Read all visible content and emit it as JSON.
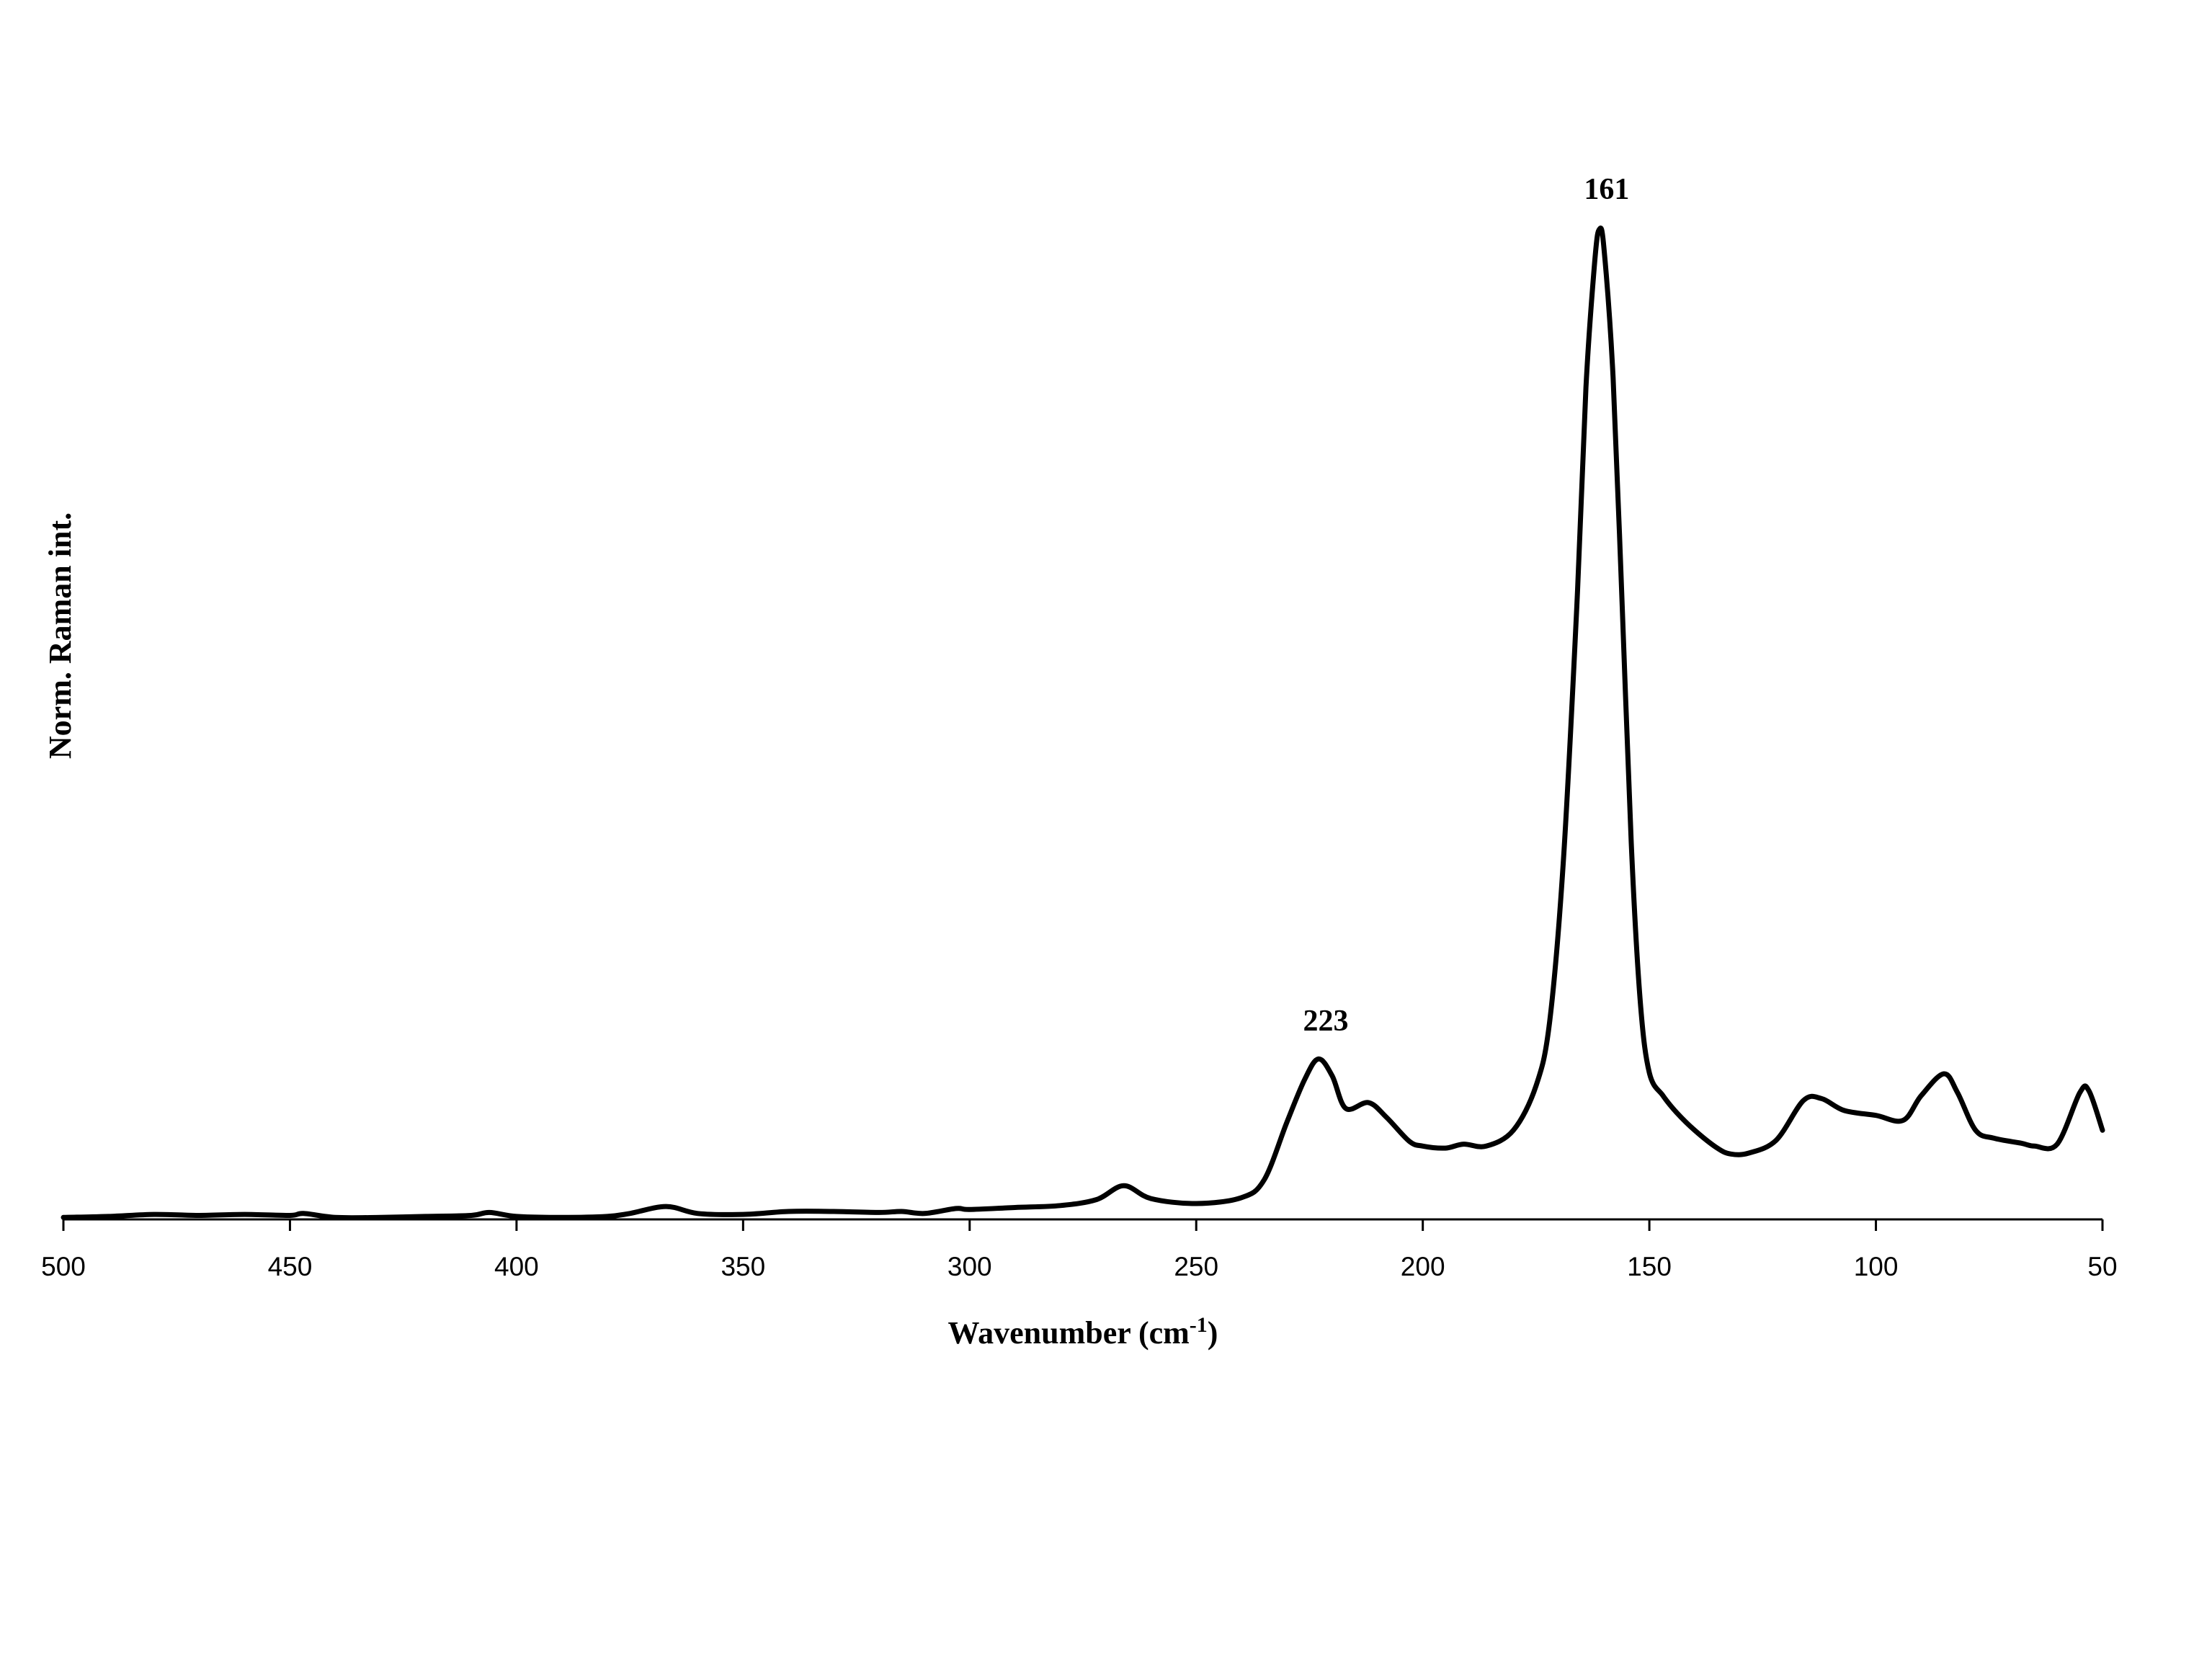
{
  "chart_data": {
    "type": "line",
    "xlabel": "Wavenumber (cm",
    "xlabel_superscript": "-1",
    "xlabel_suffix": ")",
    "ylabel": "Norm. Raman int.",
    "xlim": [
      500,
      50
    ],
    "x_reversed": true,
    "ylim": [
      0,
      1
    ],
    "x_ticks": [
      "500",
      "450",
      "400",
      "350",
      "300",
      "250",
      "200",
      "150",
      "100",
      "50"
    ],
    "y_ticks": [],
    "grid": false,
    "legend": "none",
    "line_color": "#000000",
    "annotations": [
      {
        "text": "161",
        "x": 161,
        "y": 1.0
      },
      {
        "text": "223",
        "x": 223,
        "y": 0.16
      }
    ],
    "series": [
      {
        "x": [
          500,
          490,
          480,
          470,
          460,
          450,
          447,
          440,
          430,
          420,
          410,
          406,
          400,
          390,
          380,
          375,
          367,
          360,
          350,
          340,
          330,
          320,
          315,
          310,
          303,
          300,
          290,
          280,
          272,
          266,
          260,
          250,
          240,
          235,
          230,
          226,
          223,
          220,
          217,
          212,
          208,
          203,
          200,
          195,
          191,
          186,
          180,
          175,
          172,
          169,
          166,
          164,
          162,
          161,
          160,
          158,
          156,
          154,
          152,
          150,
          147,
          144,
          140,
          135,
          132,
          128,
          122,
          116,
          112,
          107,
          100,
          94,
          90,
          85,
          82,
          78,
          74,
          68,
          65,
          60,
          55,
          53,
          50
        ],
        "y": [
          0.002,
          0.003,
          0.005,
          0.004,
          0.005,
          0.004,
          0.006,
          0.002,
          0.002,
          0.003,
          0.004,
          0.007,
          0.003,
          0.002,
          0.003,
          0.006,
          0.013,
          0.006,
          0.005,
          0.008,
          0.008,
          0.007,
          0.008,
          0.006,
          0.011,
          0.01,
          0.012,
          0.014,
          0.02,
          0.034,
          0.021,
          0.016,
          0.022,
          0.04,
          0.098,
          0.142,
          0.162,
          0.145,
          0.112,
          0.118,
          0.103,
          0.079,
          0.074,
          0.072,
          0.076,
          0.074,
          0.09,
          0.135,
          0.2,
          0.36,
          0.62,
          0.84,
          0.97,
          1.0,
          0.98,
          0.85,
          0.62,
          0.38,
          0.22,
          0.148,
          0.125,
          0.108,
          0.09,
          0.072,
          0.066,
          0.067,
          0.08,
          0.12,
          0.122,
          0.11,
          0.105,
          0.1,
          0.125,
          0.147,
          0.128,
          0.09,
          0.082,
          0.077,
          0.074,
          0.076,
          0.128,
          0.13,
          0.09
        ]
      }
    ]
  }
}
